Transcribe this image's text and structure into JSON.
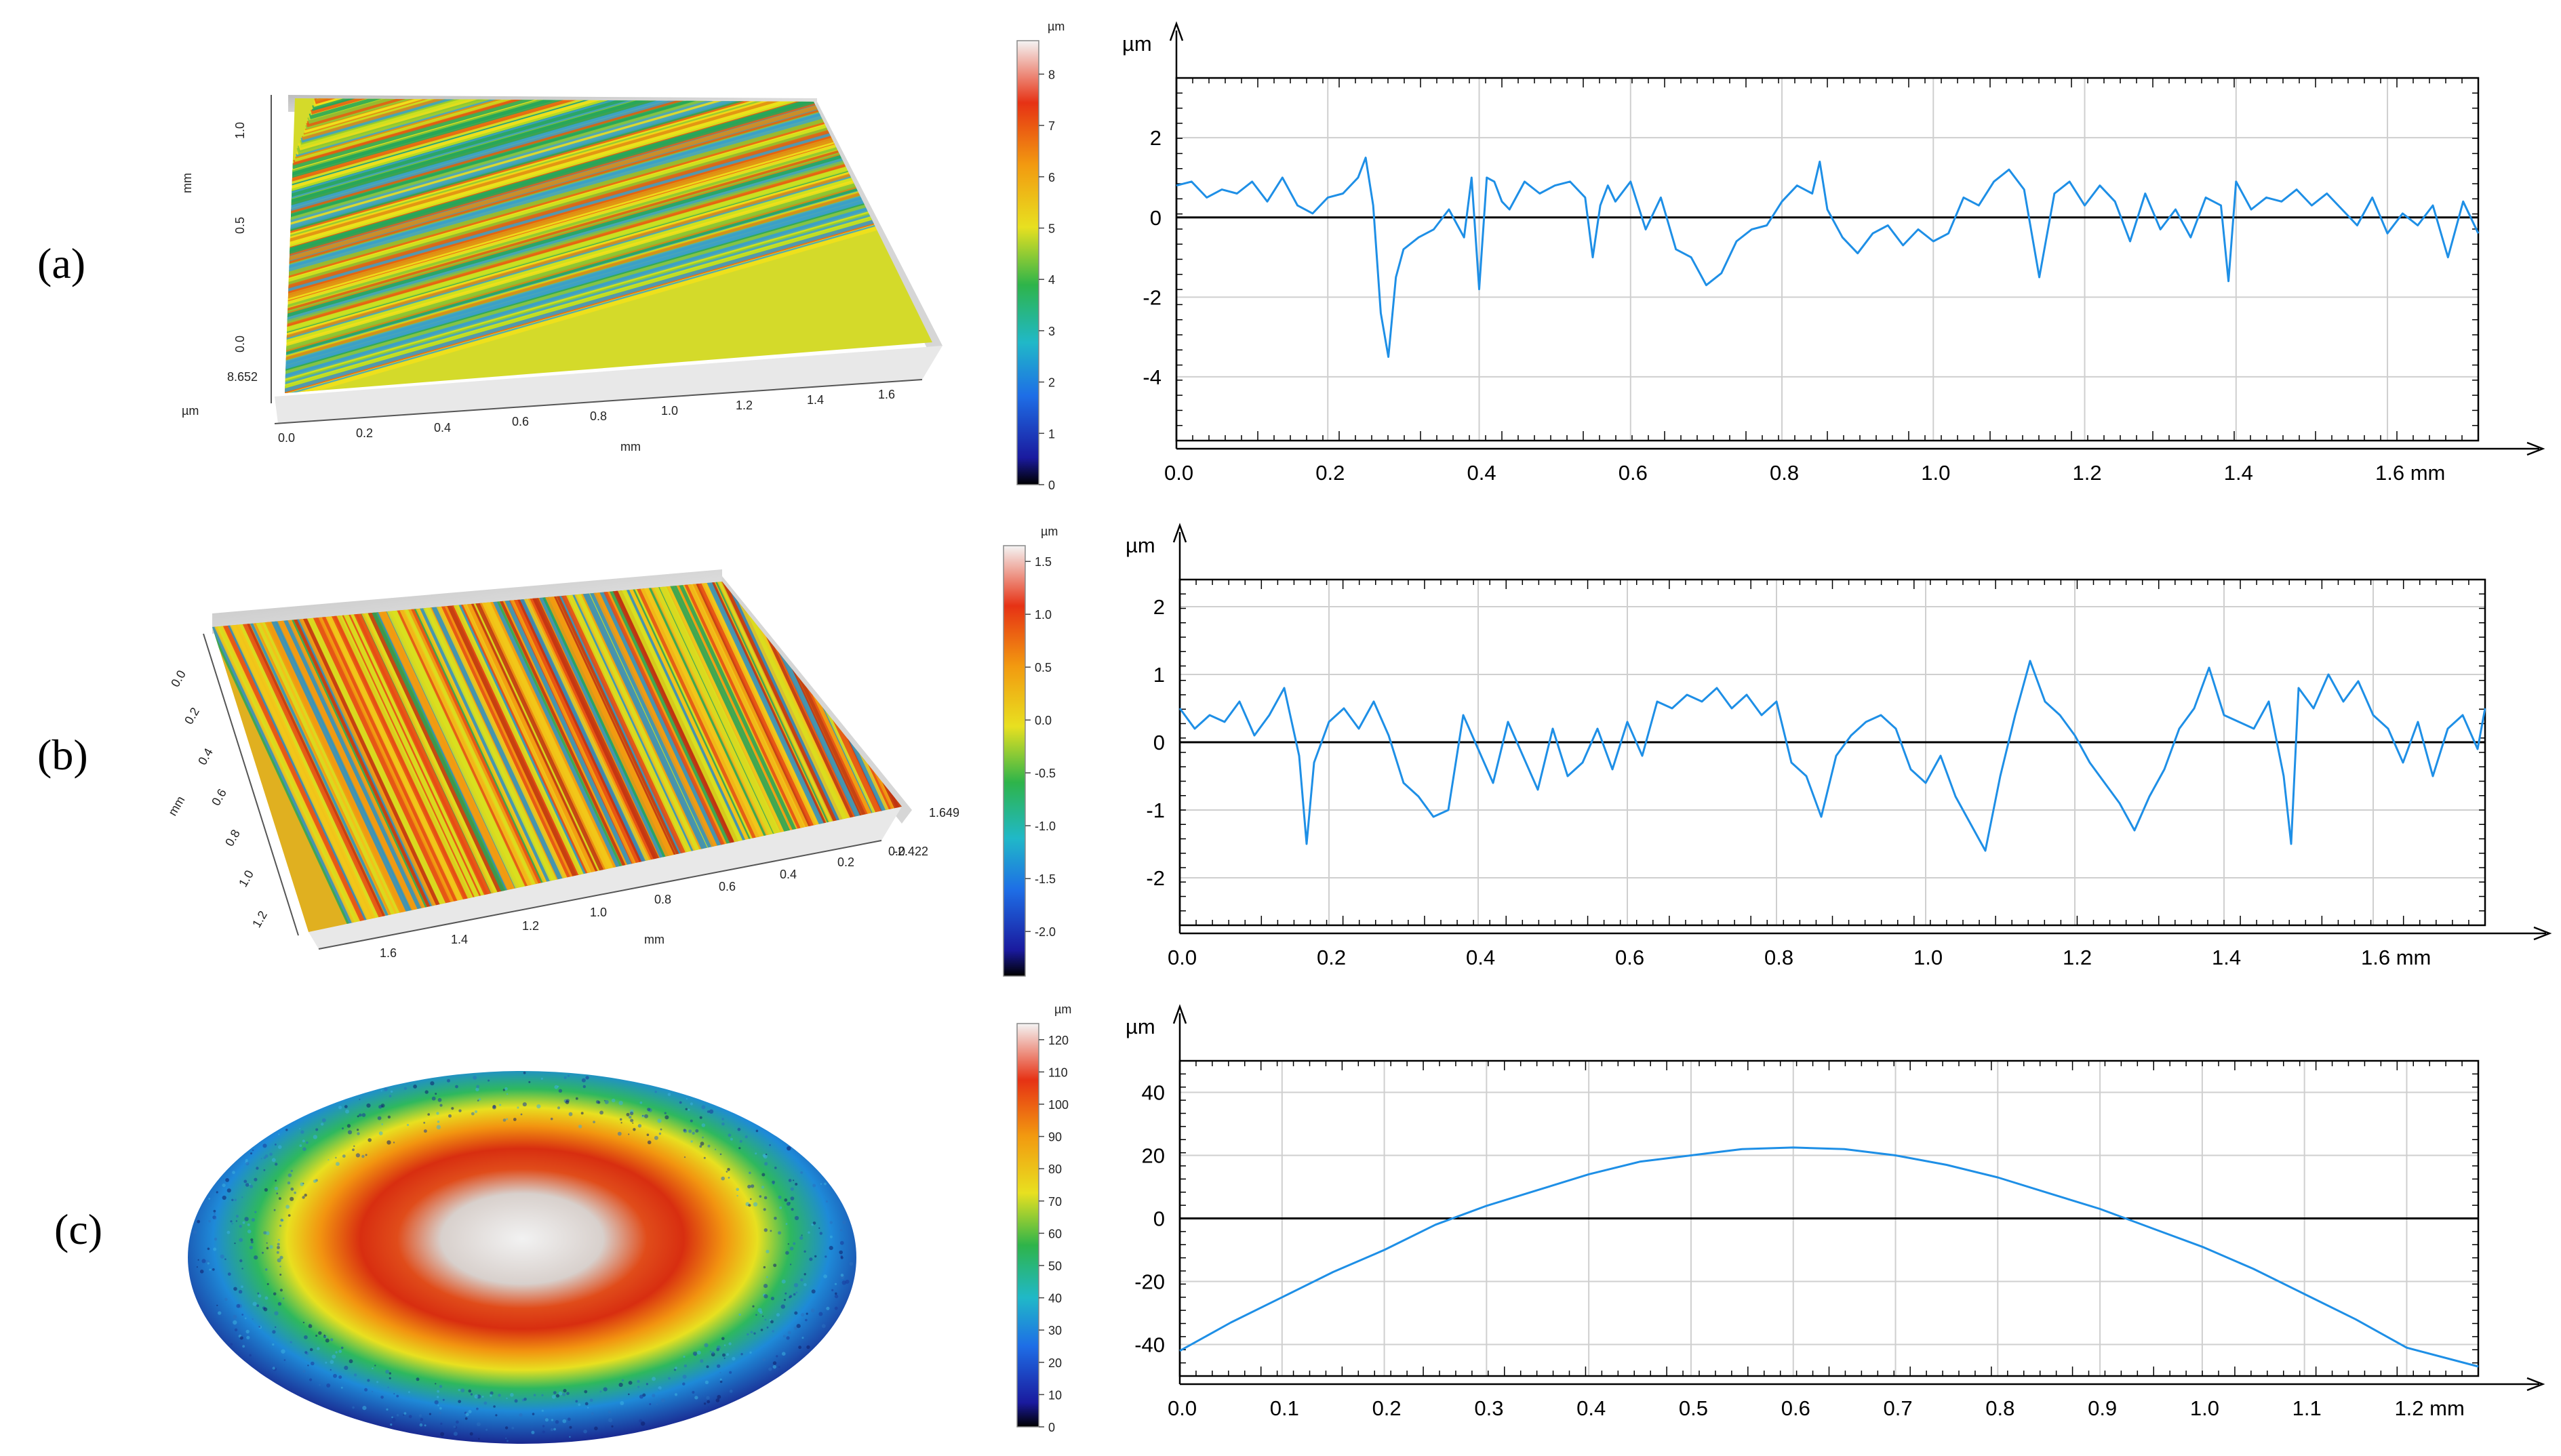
{
  "panels": [
    {
      "label": "(a)",
      "surface": {
        "type": "striated",
        "axis_texts": [
          "mm",
          "1.0",
          "0.5",
          "0.0",
          "8.652",
          "µm",
          "0.0",
          "0.2",
          "0.4",
          "0.6",
          "0.8",
          "1.0",
          "1.2",
          "1.4",
          "1.6",
          "mm"
        ],
        "colors": [
          "#f2e01a",
          "#c9e020",
          "#8cc832",
          "#25a65a",
          "#e08a10",
          "#e65c10",
          "#3aa0c8"
        ]
      },
      "colorbar": {
        "unit": "µm",
        "ticks": [
          "8",
          "7",
          "6",
          "5",
          "4",
          "3",
          "2",
          "1",
          "0"
        ],
        "min": 0,
        "max": 8.652
      },
      "profile": {
        "type": "line",
        "ylabel": "µm",
        "x_unit_label": "1.6 mm",
        "xlim": [
          0,
          1.72
        ],
        "ylim": [
          -5.6,
          3.5
        ],
        "x_ticks": [
          0.0,
          0.2,
          0.4,
          0.6,
          0.8,
          1.0,
          1.2,
          1.4,
          1.6
        ],
        "x_tick_labels": [
          "0.0",
          "0.2",
          "0.4",
          "0.6",
          "0.8",
          "1.0",
          "1.2",
          "1.4",
          "1.6 mm"
        ],
        "y_ticks": [
          2,
          0,
          -2,
          -4
        ],
        "y_tick_labels": [
          "2",
          "0",
          "-2",
          "-4"
        ],
        "x": [
          0.0,
          0.02,
          0.04,
          0.06,
          0.08,
          0.1,
          0.12,
          0.14,
          0.16,
          0.18,
          0.2,
          0.22,
          0.24,
          0.25,
          0.26,
          0.27,
          0.28,
          0.29,
          0.3,
          0.32,
          0.34,
          0.36,
          0.38,
          0.39,
          0.4,
          0.41,
          0.42,
          0.43,
          0.44,
          0.46,
          0.48,
          0.5,
          0.52,
          0.54,
          0.55,
          0.56,
          0.57,
          0.58,
          0.6,
          0.62,
          0.64,
          0.66,
          0.68,
          0.7,
          0.72,
          0.74,
          0.76,
          0.78,
          0.8,
          0.82,
          0.84,
          0.85,
          0.86,
          0.88,
          0.9,
          0.92,
          0.94,
          0.96,
          0.98,
          1.0,
          1.02,
          1.04,
          1.06,
          1.08,
          1.1,
          1.12,
          1.14,
          1.16,
          1.18,
          1.2,
          1.22,
          1.24,
          1.26,
          1.28,
          1.3,
          1.32,
          1.34,
          1.36,
          1.38,
          1.39,
          1.4,
          1.42,
          1.44,
          1.46,
          1.48,
          1.5,
          1.52,
          1.54,
          1.56,
          1.58,
          1.6,
          1.62,
          1.64,
          1.66,
          1.68,
          1.7,
          1.72
        ],
        "y": [
          0.8,
          0.9,
          0.5,
          0.7,
          0.6,
          0.9,
          0.4,
          1.0,
          0.3,
          0.1,
          0.5,
          0.6,
          1.0,
          1.5,
          0.3,
          -2.4,
          -3.5,
          -1.5,
          -0.8,
          -0.5,
          -0.3,
          0.2,
          -0.5,
          1.0,
          -1.8,
          1.0,
          0.9,
          0.4,
          0.2,
          0.9,
          0.6,
          0.8,
          0.9,
          0.5,
          -1.0,
          0.3,
          0.8,
          0.4,
          0.9,
          -0.3,
          0.5,
          -0.8,
          -1.0,
          -1.7,
          -1.4,
          -0.6,
          -0.3,
          -0.2,
          0.4,
          0.8,
          0.6,
          1.4,
          0.2,
          -0.5,
          -0.9,
          -0.4,
          -0.2,
          -0.7,
          -0.3,
          -0.6,
          -0.4,
          0.5,
          0.3,
          0.9,
          1.2,
          0.7,
          -1.5,
          0.6,
          0.9,
          0.3,
          0.8,
          0.4,
          -0.6,
          0.6,
          -0.3,
          0.2,
          -0.5,
          0.5,
          0.3,
          -1.6,
          0.9,
          0.2,
          0.5,
          0.4,
          0.7,
          0.3,
          0.6,
          0.2,
          -0.2,
          0.5,
          -0.4,
          0.1,
          -0.2,
          0.3,
          -1.0,
          0.4,
          -0.4
        ]
      }
    },
    {
      "label": "(b)",
      "surface": {
        "type": "striated",
        "axis_texts": [
          "0.0",
          "0.2",
          "0.4",
          "0.6",
          "0.8",
          "1.0",
          "1.2",
          "mm",
          "1.6",
          "1.4",
          "1.2",
          "1.0",
          "0.8",
          "0.6",
          "0.4",
          "0.2",
          "0.0",
          "mm",
          "1.649",
          "-2.422"
        ],
        "colors": [
          "#e64a14",
          "#f2c81a",
          "#d8e020",
          "#25a65a",
          "#2a90c8",
          "#c03010",
          "#f29a10"
        ]
      },
      "colorbar": {
        "unit": "µm",
        "ticks": [
          "1.5",
          "1.0",
          "0.5",
          "0.0",
          "-0.5",
          "-1.0",
          "-1.5",
          "-2.0"
        ],
        "min": -2.422,
        "max": 1.649
      },
      "profile": {
        "type": "line",
        "ylabel": "µm",
        "x_unit_label": "1.6 mm",
        "xlim": [
          0,
          1.75
        ],
        "ylim": [
          -2.7,
          2.4
        ],
        "x_ticks": [
          0.0,
          0.2,
          0.4,
          0.6,
          0.8,
          1.0,
          1.2,
          1.4,
          1.6
        ],
        "x_tick_labels": [
          "0.0",
          "0.2",
          "0.4",
          "0.6",
          "0.8",
          "1.0",
          "1.2",
          "1.4",
          "1.6 mm"
        ],
        "y_ticks": [
          2,
          1,
          0,
          -1,
          -2
        ],
        "y_tick_labels": [
          "2",
          "1",
          "0",
          "-1",
          "-2"
        ],
        "x": [
          0.0,
          0.02,
          0.04,
          0.06,
          0.08,
          0.1,
          0.12,
          0.14,
          0.16,
          0.17,
          0.18,
          0.2,
          0.22,
          0.24,
          0.26,
          0.28,
          0.3,
          0.32,
          0.34,
          0.36,
          0.38,
          0.4,
          0.42,
          0.44,
          0.46,
          0.48,
          0.5,
          0.52,
          0.54,
          0.56,
          0.58,
          0.6,
          0.62,
          0.64,
          0.66,
          0.68,
          0.7,
          0.72,
          0.74,
          0.76,
          0.78,
          0.8,
          0.82,
          0.84,
          0.86,
          0.88,
          0.9,
          0.92,
          0.94,
          0.96,
          0.98,
          1.0,
          1.02,
          1.04,
          1.06,
          1.08,
          1.1,
          1.12,
          1.14,
          1.16,
          1.18,
          1.2,
          1.22,
          1.24,
          1.26,
          1.28,
          1.3,
          1.32,
          1.34,
          1.36,
          1.38,
          1.4,
          1.42,
          1.44,
          1.46,
          1.48,
          1.49,
          1.5,
          1.52,
          1.54,
          1.56,
          1.58,
          1.6,
          1.62,
          1.64,
          1.66,
          1.68,
          1.7,
          1.72,
          1.74,
          1.75
        ],
        "y": [
          0.5,
          0.2,
          0.4,
          0.3,
          0.6,
          0.1,
          0.4,
          0.8,
          -0.2,
          -1.5,
          -0.3,
          0.3,
          0.5,
          0.2,
          0.6,
          0.1,
          -0.6,
          -0.8,
          -1.1,
          -1.0,
          0.4,
          -0.1,
          -0.6,
          0.3,
          -0.2,
          -0.7,
          0.2,
          -0.5,
          -0.3,
          0.2,
          -0.4,
          0.3,
          -0.2,
          0.6,
          0.5,
          0.7,
          0.6,
          0.8,
          0.5,
          0.7,
          0.4,
          0.6,
          -0.3,
          -0.5,
          -1.1,
          -0.2,
          0.1,
          0.3,
          0.4,
          0.2,
          -0.4,
          -0.6,
          -0.2,
          -0.8,
          -1.2,
          -1.6,
          -0.5,
          0.4,
          1.2,
          0.6,
          0.4,
          0.1,
          -0.3,
          -0.6,
          -0.9,
          -1.3,
          -0.8,
          -0.4,
          0.2,
          0.5,
          1.1,
          0.4,
          0.3,
          0.2,
          0.6,
          -0.5,
          -1.5,
          0.8,
          0.5,
          1.0,
          0.6,
          0.9,
          0.4,
          0.2,
          -0.3,
          0.3,
          -0.5,
          0.2,
          0.4,
          -0.1,
          0.5
        ]
      }
    },
    {
      "label": "(c)",
      "surface": {
        "type": "dome",
        "colors": [
          "#1a2a8c",
          "#1e88d8",
          "#2ab870",
          "#e8e020",
          "#f28a10",
          "#d83014",
          "#f0f0f0"
        ]
      },
      "colorbar": {
        "unit": "µm",
        "ticks": [
          "120",
          "110",
          "100",
          "90",
          "80",
          "70",
          "60",
          "50",
          "40",
          "30",
          "20",
          "10",
          "0"
        ],
        "min": 0,
        "max": 125
      },
      "profile": {
        "type": "line",
        "ylabel": "µm",
        "x_unit_label": "1.2 mm",
        "xlim": [
          0,
          1.27
        ],
        "ylim": [
          -50,
          50
        ],
        "x_ticks": [
          0.0,
          0.1,
          0.2,
          0.3,
          0.4,
          0.5,
          0.6,
          0.7,
          0.8,
          0.9,
          1.0,
          1.1,
          1.2
        ],
        "x_tick_labels": [
          "0.0",
          "0.1",
          "0.2",
          "0.3",
          "0.4",
          "0.5",
          "0.6",
          "0.7",
          "0.8",
          "0.9",
          "1.0",
          "1.1",
          "1.2 mm"
        ],
        "y_ticks": [
          40,
          20,
          0,
          -20,
          -40
        ],
        "y_tick_labels": [
          "40",
          "20",
          "0",
          "-20",
          "-40"
        ],
        "x": [
          0.0,
          0.05,
          0.1,
          0.15,
          0.2,
          0.25,
          0.3,
          0.35,
          0.4,
          0.45,
          0.5,
          0.55,
          0.6,
          0.65,
          0.7,
          0.75,
          0.8,
          0.85,
          0.9,
          0.95,
          1.0,
          1.05,
          1.1,
          1.15,
          1.2,
          1.27
        ],
        "y": [
          -42,
          -33,
          -25,
          -17,
          -10,
          -2,
          4,
          9,
          14,
          18,
          20,
          22,
          22.5,
          22,
          20,
          17,
          13,
          8,
          3,
          -3,
          -9,
          -16,
          -24,
          -32,
          -41,
          -47
        ]
      }
    }
  ]
}
